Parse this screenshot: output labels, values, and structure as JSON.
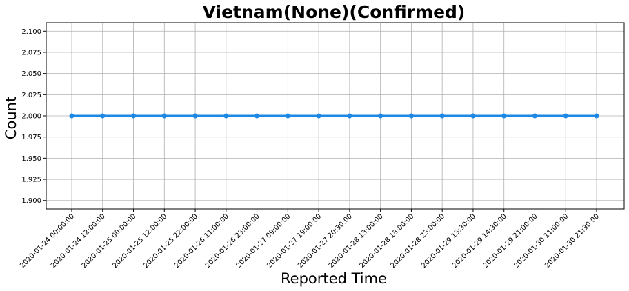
{
  "chart_data": {
    "type": "line",
    "title": "Vietnam(None)(Confirmed)",
    "xlabel": "Reported Time",
    "ylabel": "Count",
    "ylim": [
      1.89,
      2.11
    ],
    "yticks": [
      "2.100",
      "2.075",
      "2.050",
      "2.025",
      "2.000",
      "1.975",
      "1.950",
      "1.925",
      "1.900"
    ],
    "ytick_values": [
      2.1,
      2.075,
      2.05,
      2.025,
      2.0,
      1.975,
      1.95,
      1.925,
      1.9
    ],
    "grid": true,
    "categories": [
      "2020-01-24 00:00:00",
      "2020-01-24 12:00:00",
      "2020-01-25 00:00:00",
      "2020-01-25 12:00:00",
      "2020-01-25 22:00:00",
      "2020-01-26 11:00:00",
      "2020-01-26 23:00:00",
      "2020-01-27 09:00:00",
      "2020-01-27 19:00:00",
      "2020-01-27 20:30:00",
      "2020-01-28 13:00:00",
      "2020-01-28 18:00:00",
      "2020-01-28 23:00:00",
      "2020-01-29 13:30:00",
      "2020-01-29 14:30:00",
      "2020-01-29 21:00:00",
      "2020-01-30 11:00:00",
      "2020-01-30 21:30:00"
    ],
    "series": [
      {
        "name": "Confirmed",
        "color": "#1e88e5",
        "values": [
          2,
          2,
          2,
          2,
          2,
          2,
          2,
          2,
          2,
          2,
          2,
          2,
          2,
          2,
          2,
          2,
          2,
          2
        ]
      }
    ]
  }
}
